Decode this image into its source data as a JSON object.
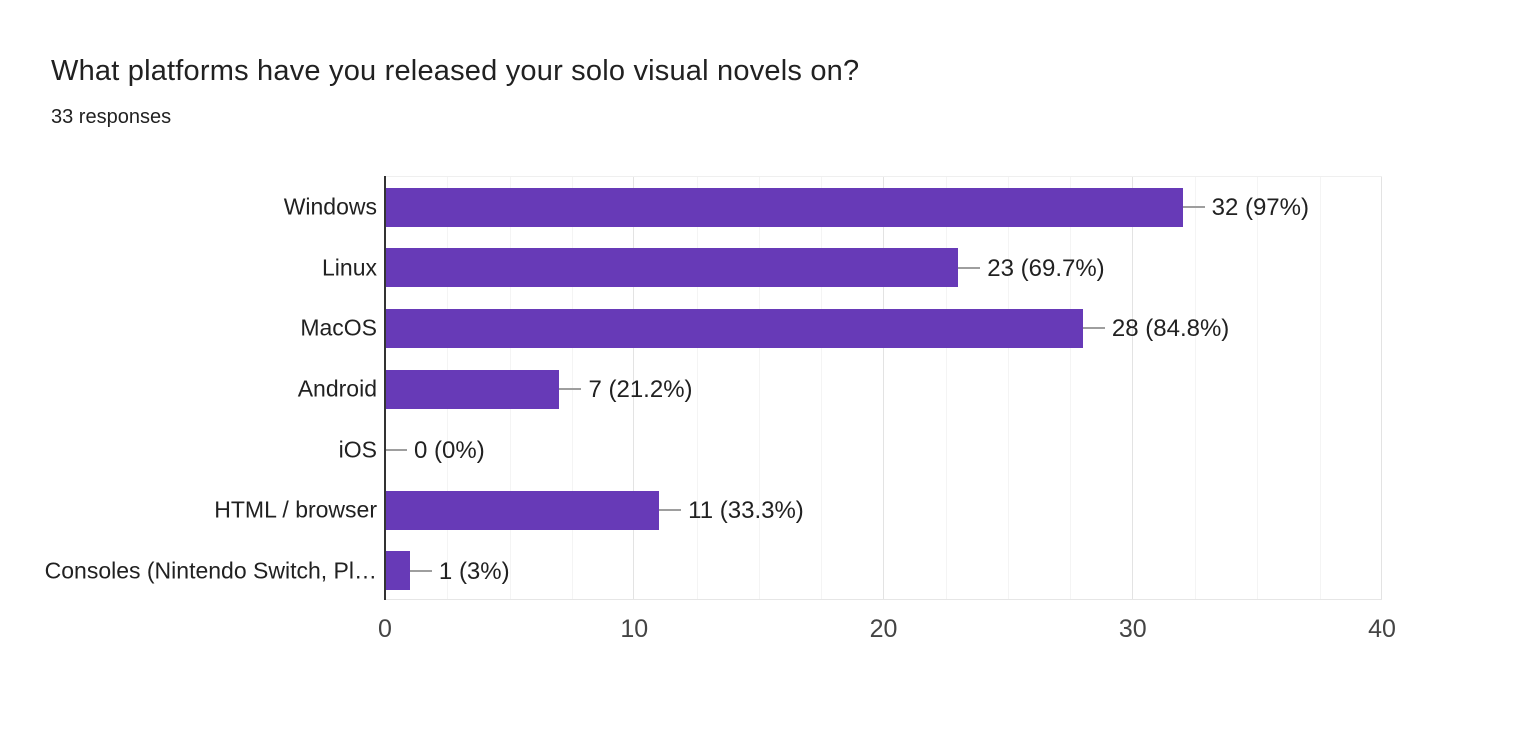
{
  "header": {
    "title": "What platforms have you released your solo visual novels on?",
    "responses": "33 responses"
  },
  "colors": {
    "bar": "#673ab7",
    "axis": "#333333",
    "grid_major": "#e3e3e3",
    "grid_minor": "#f4f4f4",
    "connector": "#9e9e9e",
    "text": "#212121"
  },
  "chart_data": {
    "type": "bar",
    "orientation": "horizontal",
    "title": "What platforms have you released your solo visual novels on?",
    "subtitle": "33 responses",
    "categories": [
      "Windows",
      "Linux",
      "MacOS",
      "Android",
      "iOS",
      "HTML / browser",
      "Consoles (Nintendo Switch, Pl…"
    ],
    "values": [
      32,
      23,
      28,
      7,
      0,
      11,
      1
    ],
    "value_labels": [
      "32 (97%)",
      "23 (69.7%)",
      "28 (84.8%)",
      "7 (21.2%)",
      "0 (0%)",
      "11 (33.3%)",
      "1 (3%)"
    ],
    "xlabel": "",
    "ylabel": "",
    "xlim": [
      0,
      40
    ],
    "x_ticks": [
      0,
      10,
      20,
      30,
      40
    ],
    "minor_tick_step": 2.5,
    "grid": true,
    "legend": false
  }
}
